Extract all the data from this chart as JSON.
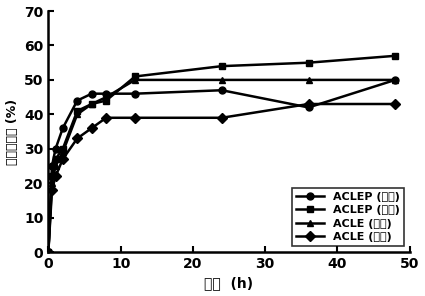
{
  "title": "",
  "xlabel": "时间  (h)",
  "ylabel": "累计释放率 (%)",
  "xlim": [
    0,
    50
  ],
  "ylim": [
    0,
    70
  ],
  "xticks": [
    0,
    10,
    20,
    30,
    40,
    50
  ],
  "yticks": [
    0,
    10,
    20,
    30,
    40,
    50,
    60,
    70
  ],
  "series": [
    {
      "label": "ACLEP (缺氧)",
      "x": [
        0,
        0.5,
        1,
        2,
        4,
        6,
        8,
        12,
        24,
        36,
        48
      ],
      "y": [
        0,
        25,
        30,
        36,
        44,
        46,
        46,
        46,
        47,
        42,
        50
      ],
      "marker": "o",
      "markersize": 5,
      "linewidth": 1.8
    },
    {
      "label": "ACLEP (常氧)",
      "x": [
        0,
        0.5,
        1,
        2,
        4,
        6,
        8,
        12,
        24,
        36,
        48
      ],
      "y": [
        0,
        22,
        27,
        30,
        41,
        43,
        44,
        51,
        54,
        55,
        57
      ],
      "marker": "s",
      "markersize": 5,
      "linewidth": 1.8
    },
    {
      "label": "ACLE (缺氧)",
      "x": [
        0,
        0.5,
        1,
        2,
        4,
        6,
        8,
        12,
        24,
        36,
        48
      ],
      "y": [
        0,
        20,
        25,
        29,
        40,
        43,
        45,
        50,
        50,
        50,
        50
      ],
      "marker": "^",
      "markersize": 5,
      "linewidth": 1.8
    },
    {
      "label": "ACLE (常氧)",
      "x": [
        0,
        0.5,
        1,
        2,
        4,
        6,
        8,
        12,
        24,
        36,
        48
      ],
      "y": [
        0,
        18,
        22,
        27,
        33,
        36,
        39,
        39,
        39,
        43,
        43
      ],
      "marker": "D",
      "markersize": 5,
      "linewidth": 1.8
    }
  ],
  "legend_loc": "lower right",
  "background_color": "#ffffff"
}
